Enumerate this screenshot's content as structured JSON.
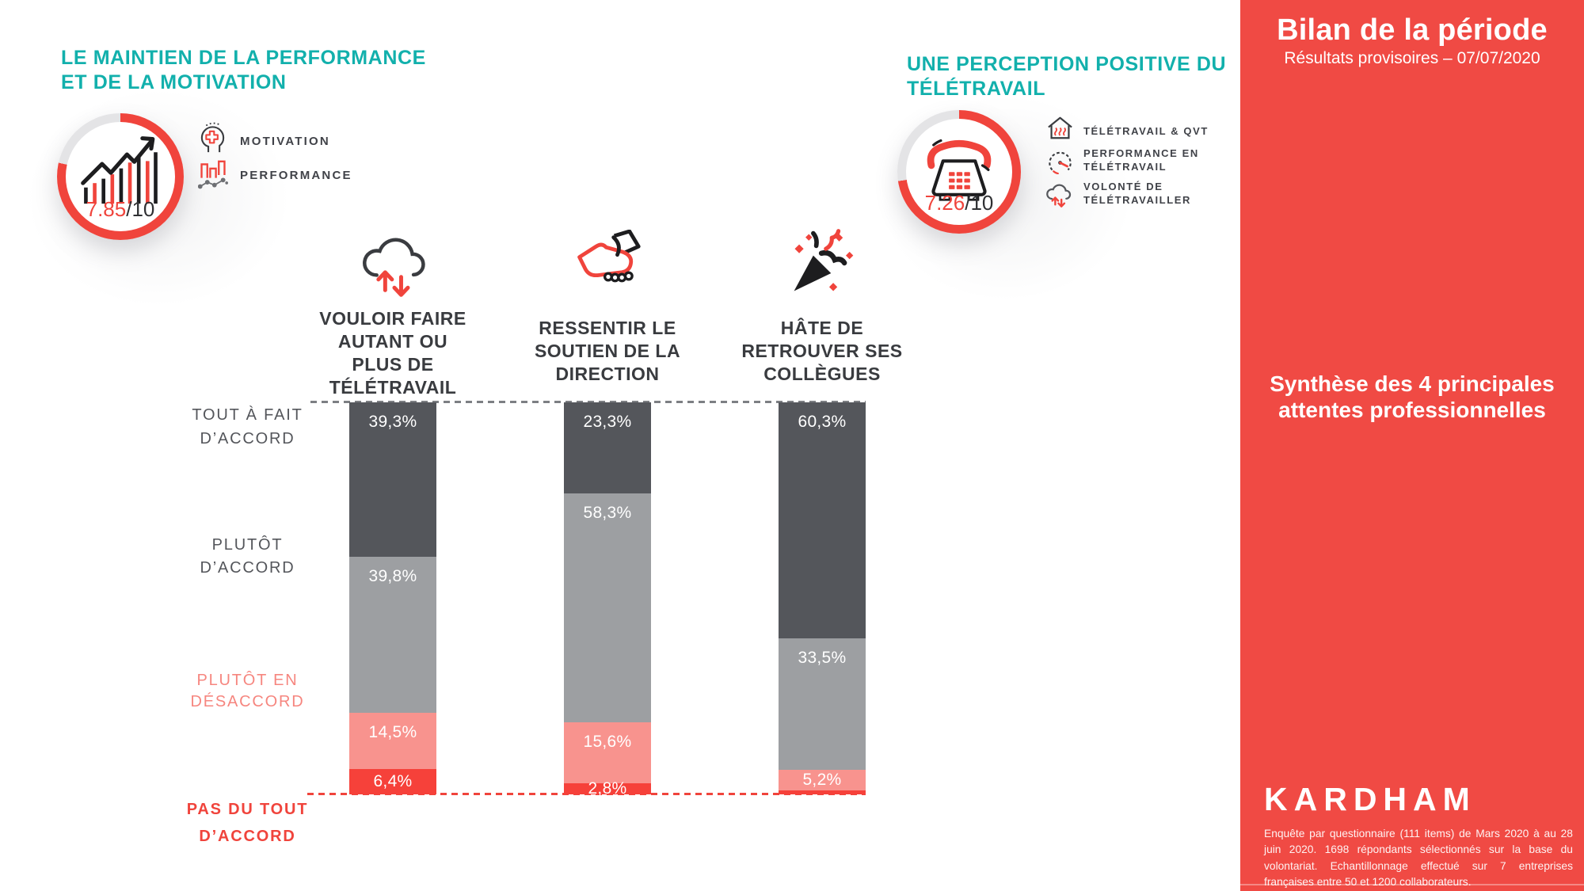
{
  "colors": {
    "teal": "#12b0ac",
    "red": "#f0443c",
    "sidebar_red": "#f04a44",
    "dark_gray": "#54565b",
    "mid_gray": "#9d9fa2",
    "pink": "#f8938e",
    "ring_gray": "#e4e4e6"
  },
  "left_section": {
    "title_line1": "LE MAINTIEN DE LA PERFORMANCE",
    "title_line2": "ET DE LA MOTIVATION",
    "gauge": {
      "score": "7.85",
      "denominator": "/10"
    },
    "legend": [
      {
        "icon": "head-plus-icon",
        "label": "MOTIVATION"
      },
      {
        "icon": "performance-bars-icon",
        "label": "PERFORMANCE"
      }
    ]
  },
  "right_section": {
    "title_line1": "UNE PERCEPTION POSITIVE DU",
    "title_line2": "TÉLÉTRAVAIL",
    "gauge": {
      "score": "7.26",
      "denominator": "/10"
    },
    "legend": [
      {
        "icon": "house-heat-icon",
        "line1": "TÉLÉTRAVAIL & QVT",
        "line2": ""
      },
      {
        "icon": "speedometer-icon",
        "line1": "PERFORMANCE EN",
        "line2": "TÉLÉTRAVAIL"
      },
      {
        "icon": "cloud-arrows-icon",
        "line1": "VOLONTÉ DE",
        "line2": "TÉLÉTRAVAILLER"
      }
    ]
  },
  "sidebar": {
    "title": "Bilan de la période",
    "subtitle": "Résultats provisoires – 07/07/2020",
    "synthesis_line1": "Synthèse des 4 principales",
    "synthesis_line2": "attentes professionnelles",
    "logo": "KARDHAM",
    "footnote": "Enquête par questionnaire (111 items) de Mars 2020 à au 28 juin 2020. 1698 répondants sélectionnés sur la base du volontariat. Echantillonnage effectué sur 7 entreprises françaises entre 50 et 1200 collaborateurs."
  },
  "chart_data": {
    "type": "bar",
    "stacked": true,
    "unit": "percent",
    "grid": false,
    "ylim": [
      0,
      100
    ],
    "categories": [
      "VOULOIR FAIRE AUTANT OU PLUS DE TÉLÉTRAVAIL",
      "RESSENTIR LE SOUTIEN DE LA DIRECTION",
      "HÂTE DE RETROUVER SES COLLÈGUES"
    ],
    "category_lines": [
      [
        "VOULOIR FAIRE",
        "AUTANT OU",
        "PLUS DE",
        "TÉLÉTRAVAIL"
      ],
      [
        "RESSENTIR LE",
        "SOUTIEN DE LA",
        "DIRECTION"
      ],
      [
        "HÂTE DE",
        "RETROUVER SES",
        "COLLÈGUES"
      ]
    ],
    "series": [
      {
        "name": "TOUT À FAIT D’ACCORD",
        "color": "#54565b",
        "values": [
          39.3,
          23.3,
          60.3
        ]
      },
      {
        "name": "PLUTÔT D’ACCORD",
        "color": "#9d9fa2",
        "values": [
          39.8,
          58.3,
          33.5
        ]
      },
      {
        "name": "PLUTÔT EN DÉSACCORD",
        "color": "#f8938e",
        "values": [
          14.5,
          15.6,
          5.2
        ]
      },
      {
        "name": "PAS DU TOUT D’ACCORD",
        "color": "#f6413a",
        "values": [
          6.4,
          2.8,
          1.0
        ]
      }
    ],
    "value_labels": [
      [
        "39,3%",
        "39,8%",
        "14,5%",
        "6,4%"
      ],
      [
        "23,3%",
        "58,3%",
        "15,6%",
        "2,8%"
      ],
      [
        "60,3%",
        "33,5%",
        "5,2%",
        ""
      ]
    ],
    "row_labels": [
      {
        "lines": [
          "TOUT À FAIT",
          "D’ACCORD"
        ],
        "style": "dark"
      },
      {
        "lines": [
          "PLUTÔT",
          "D’ACCORD"
        ],
        "style": "dark"
      },
      {
        "lines": [
          "PLUTÔT EN",
          "DÉSACCORD"
        ],
        "style": "pink"
      },
      {
        "lines": [
          "PAS DU TOUT",
          "D’ACCORD"
        ],
        "style": "red"
      }
    ]
  }
}
